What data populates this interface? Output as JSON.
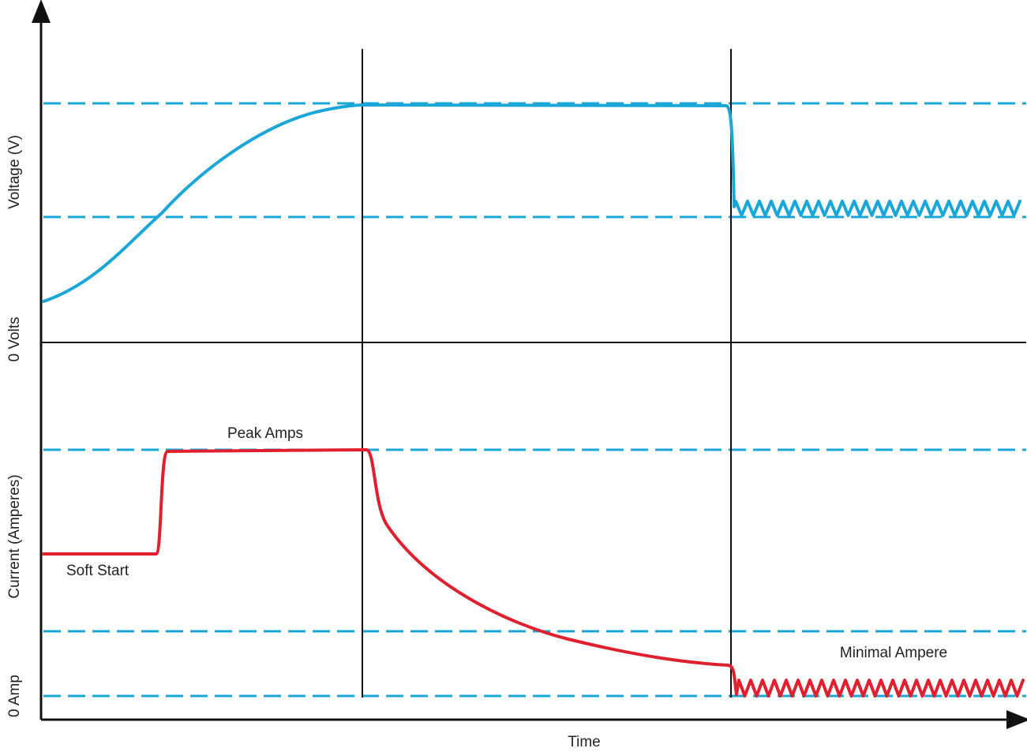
{
  "chart_data": {
    "type": "line",
    "title": "",
    "xlabel": "Time",
    "panels": [
      {
        "name": "voltage",
        "ylabel": "Voltage (V)",
        "zero_label": "0 Volts",
        "color": "#1aa7d8",
        "reference_lines": 2
      },
      {
        "name": "current",
        "ylabel": "Current (Amperes)",
        "zero_label": "0 Amp",
        "color": "#e0202e",
        "reference_lines": 2
      }
    ],
    "annotations": {
      "peak": "Peak Amps",
      "soft_start": "Soft Start",
      "minimal": "Minimal Ampere"
    },
    "phase_dividers": 2,
    "axis_color": "#111111",
    "reference_color": "#1aa7d8",
    "grid": false
  }
}
